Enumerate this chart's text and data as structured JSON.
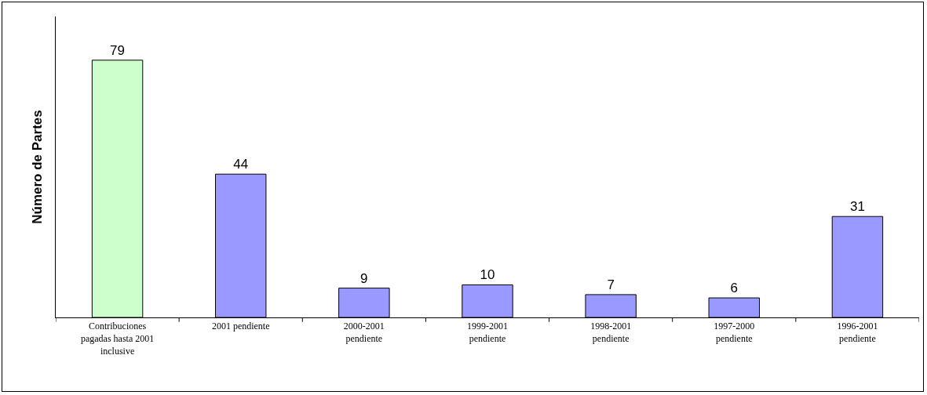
{
  "chart_data": {
    "type": "bar",
    "ylabel": "Número de Partes",
    "categories": [
      "Contribuciones pagadas hasta 2001 inclusive",
      "2001 pendiente",
      "2000-2001 pendiente",
      "1999-2001 pendiente",
      "1998-2001 pendiente",
      "1997-2000 pendiente",
      "1996-2001 pendiente"
    ],
    "values": [
      79,
      44,
      9,
      10,
      7,
      6,
      31
    ],
    "colors": [
      "#ccffcc",
      "#9999ff",
      "#9999ff",
      "#9999ff",
      "#9999ff",
      "#9999ff",
      "#9999ff"
    ],
    "data_labels": true,
    "grid": false,
    "legend": false
  }
}
